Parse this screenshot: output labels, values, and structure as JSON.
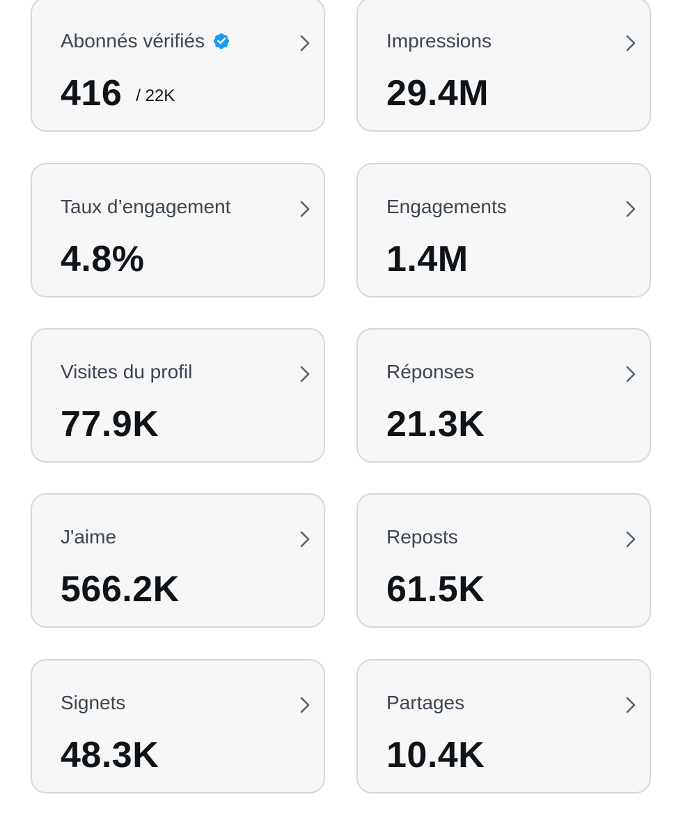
{
  "cards": [
    {
      "title": "Abonnés vérifiés",
      "value": "416",
      "sub": "/ 22K",
      "icon": "verified-badge-icon"
    },
    {
      "title": "Impressions",
      "value": "29.4M"
    },
    {
      "title": "Taux d’engagement",
      "value": "4.8%"
    },
    {
      "title": "Engagements",
      "value": "1.4M"
    },
    {
      "title": "Visites du profil",
      "value": "77.9K"
    },
    {
      "title": "Réponses",
      "value": "21.3K"
    },
    {
      "title": "J'aime",
      "value": "566.2K"
    },
    {
      "title": "Reposts",
      "value": "61.5K"
    },
    {
      "title": "Signets",
      "value": "48.3K"
    },
    {
      "title": "Partages",
      "value": "10.4K"
    }
  ],
  "colors": {
    "card_background": "#f7f7f8",
    "card_border": "#cfd9de",
    "title_text": "#3b4550",
    "value_text": "#0f1419",
    "chevron": "#536471",
    "verified_badge": "#1d9bf0"
  },
  "icons": {
    "chevron": "chevron-right-icon",
    "verified": "verified-badge-icon"
  }
}
